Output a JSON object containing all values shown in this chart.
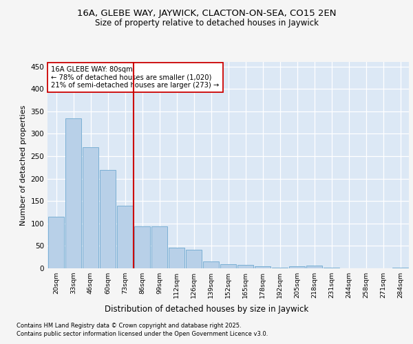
{
  "title1": "16A, GLEBE WAY, JAYWICK, CLACTON-ON-SEA, CO15 2EN",
  "title2": "Size of property relative to detached houses in Jaywick",
  "xlabel": "Distribution of detached houses by size in Jaywick",
  "ylabel": "Number of detached properties",
  "categories": [
    "20sqm",
    "33sqm",
    "46sqm",
    "60sqm",
    "73sqm",
    "86sqm",
    "99sqm",
    "112sqm",
    "126sqm",
    "139sqm",
    "152sqm",
    "165sqm",
    "178sqm",
    "192sqm",
    "205sqm",
    "218sqm",
    "231sqm",
    "244sqm",
    "258sqm",
    "271sqm",
    "284sqm"
  ],
  "values": [
    115,
    335,
    270,
    220,
    140,
    94,
    94,
    46,
    41,
    16,
    9,
    8,
    4,
    1,
    5,
    6,
    1,
    0,
    0,
    0,
    2
  ],
  "bar_color": "#b8d0e8",
  "bar_edge_color": "#7aafd4",
  "vline_x": 4.5,
  "vline_color": "#cc0000",
  "annotation_text": "16A GLEBE WAY: 80sqm\n← 78% of detached houses are smaller (1,020)\n21% of semi-detached houses are larger (273) →",
  "annotation_box_color": "#ffffff",
  "annotation_box_edge": "#cc0000",
  "ylim": [
    0,
    460
  ],
  "yticks": [
    0,
    50,
    100,
    150,
    200,
    250,
    300,
    350,
    400,
    450
  ],
  "plot_bg_color": "#dce8f5",
  "grid_color": "#ffffff",
  "fig_bg_color": "#f5f5f5",
  "footer1": "Contains HM Land Registry data © Crown copyright and database right 2025.",
  "footer2": "Contains public sector information licensed under the Open Government Licence v3.0."
}
